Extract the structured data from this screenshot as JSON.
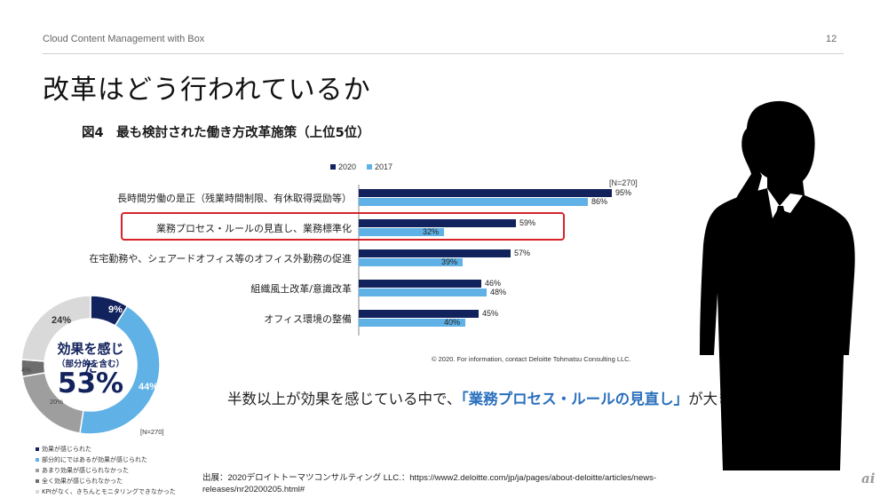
{
  "header": {
    "title": "Cloud Content Management with Box",
    "page_number": "12"
  },
  "slide": {
    "title": "改革はどう行われているか"
  },
  "chart_data": [
    {
      "type": "bar",
      "orientation": "horizontal",
      "title": "図4　最も検討された働き方改革施策（上位5位）",
      "n_label": "[N=270]",
      "categories": [
        "長時間労働の是正（残業時間制限、有休取得奨励等）",
        "業務プロセス・ルールの見直し、業務標準化",
        "在宅勤務や、シェアードオフィス等のオフィス外勤務の促進",
        "組織風土改革/意識改革",
        "オフィス環境の整備"
      ],
      "series": [
        {
          "name": "2020",
          "color": "#12225c",
          "values": [
            95,
            59,
            57,
            46,
            45
          ],
          "labels": [
            "95%",
            "59%",
            "57%",
            "46%",
            "45%"
          ]
        },
        {
          "name": "2017",
          "color": "#5fb1e6",
          "values": [
            86,
            32,
            39,
            48,
            40
          ],
          "labels": [
            "86%",
            "32%",
            "39%",
            "48%",
            "40%"
          ]
        }
      ],
      "xlim": [
        0,
        100
      ],
      "legend_position": "top",
      "highlighted_category_index": 1,
      "highlight_color": "#d6232a",
      "copyright": "© 2020. For information, contact Deloitte Tohmatsu Consulting LLC."
    },
    {
      "type": "pie",
      "style": "donut",
      "n_label": "[N=270]",
      "center_text": "効果を感じた",
      "center_subtext": "（部分的を含む）",
      "center_value": "53%",
      "slices": [
        {
          "label": "効果が感じられた",
          "value": 9,
          "display": "9%",
          "color": "#12225c"
        },
        {
          "label": "部分的にではあるが効果が感じられた",
          "value": 44,
          "display": "44%",
          "color": "#5fb1e6"
        },
        {
          "label": "あまり効果が感じられなかった",
          "value": 20,
          "display": "20%",
          "color": "#9e9e9e"
        },
        {
          "label": "全く効果が感じられなかった",
          "value": 4,
          "display": "4%",
          "color": "#6d6d6d"
        },
        {
          "label": "KPIがなく、きちんとモニタリングできなかった",
          "value": 24,
          "display": "24%",
          "color": "#d9d9d9"
        }
      ]
    }
  ],
  "message": {
    "part1": "半数以上が効果を感じている中で、",
    "accent": "「業務プロセス・ルールの見直し」",
    "part2": "が大きく伸びている"
  },
  "source": {
    "text": "出展：2020デロイトトーマツコンサルティング LLC.：https://www2.deloitte.com/jp/ja/pages/about-deloitte/articles/news-releases/nr20200205.html#"
  },
  "logo": {
    "text": "ai"
  },
  "icons": {
    "silhouette": "businessman-on-phone-silhouette-icon"
  }
}
